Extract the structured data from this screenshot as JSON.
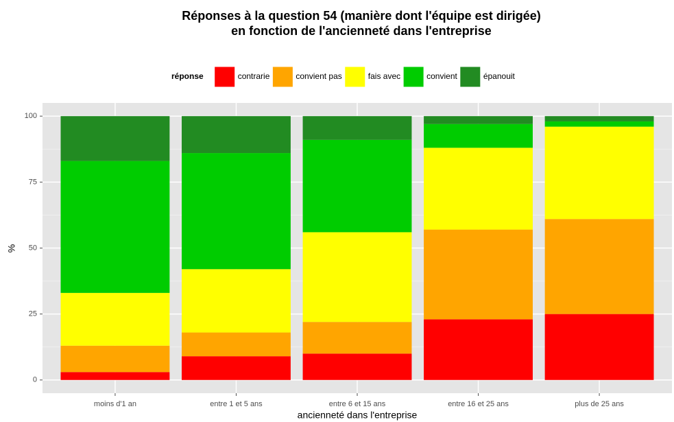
{
  "chart_data": {
    "type": "stacked_bar",
    "title": [
      "Réponses à la question 54 (manière dont l'équipe est dirigée)",
      "en fonction de l'ancienneté dans l'entreprise"
    ],
    "x_label": "ancienneté dans l'entreprise",
    "y_label": "%",
    "legend_title": "réponse",
    "legend_position": "top",
    "categories": [
      "moins d'1 an",
      "entre 1 et 5 ans",
      "entre 6 et 15 ans",
      "entre 16 et 25 ans",
      "plus de 25 ans"
    ],
    "series": [
      {
        "name": "contrarie",
        "color": "#ff0000",
        "values": [
          3,
          9,
          10,
          23,
          25
        ]
      },
      {
        "name": "convient pas",
        "color": "#ffa500",
        "values": [
          10,
          9,
          12,
          34,
          36
        ]
      },
      {
        "name": "fais avec",
        "color": "#ffff00",
        "values": [
          20,
          24,
          34,
          31,
          35
        ]
      },
      {
        "name": "convient",
        "color": "#00cc00",
        "values": [
          50,
          44,
          35,
          9,
          2
        ]
      },
      {
        "name": "épanouit",
        "color": "#228b22",
        "values": [
          17,
          14,
          9,
          3,
          2
        ]
      }
    ],
    "ylim": [
      -5,
      105
    ],
    "yticks": [
      0,
      25,
      50,
      75,
      100
    ],
    "grid": true
  }
}
